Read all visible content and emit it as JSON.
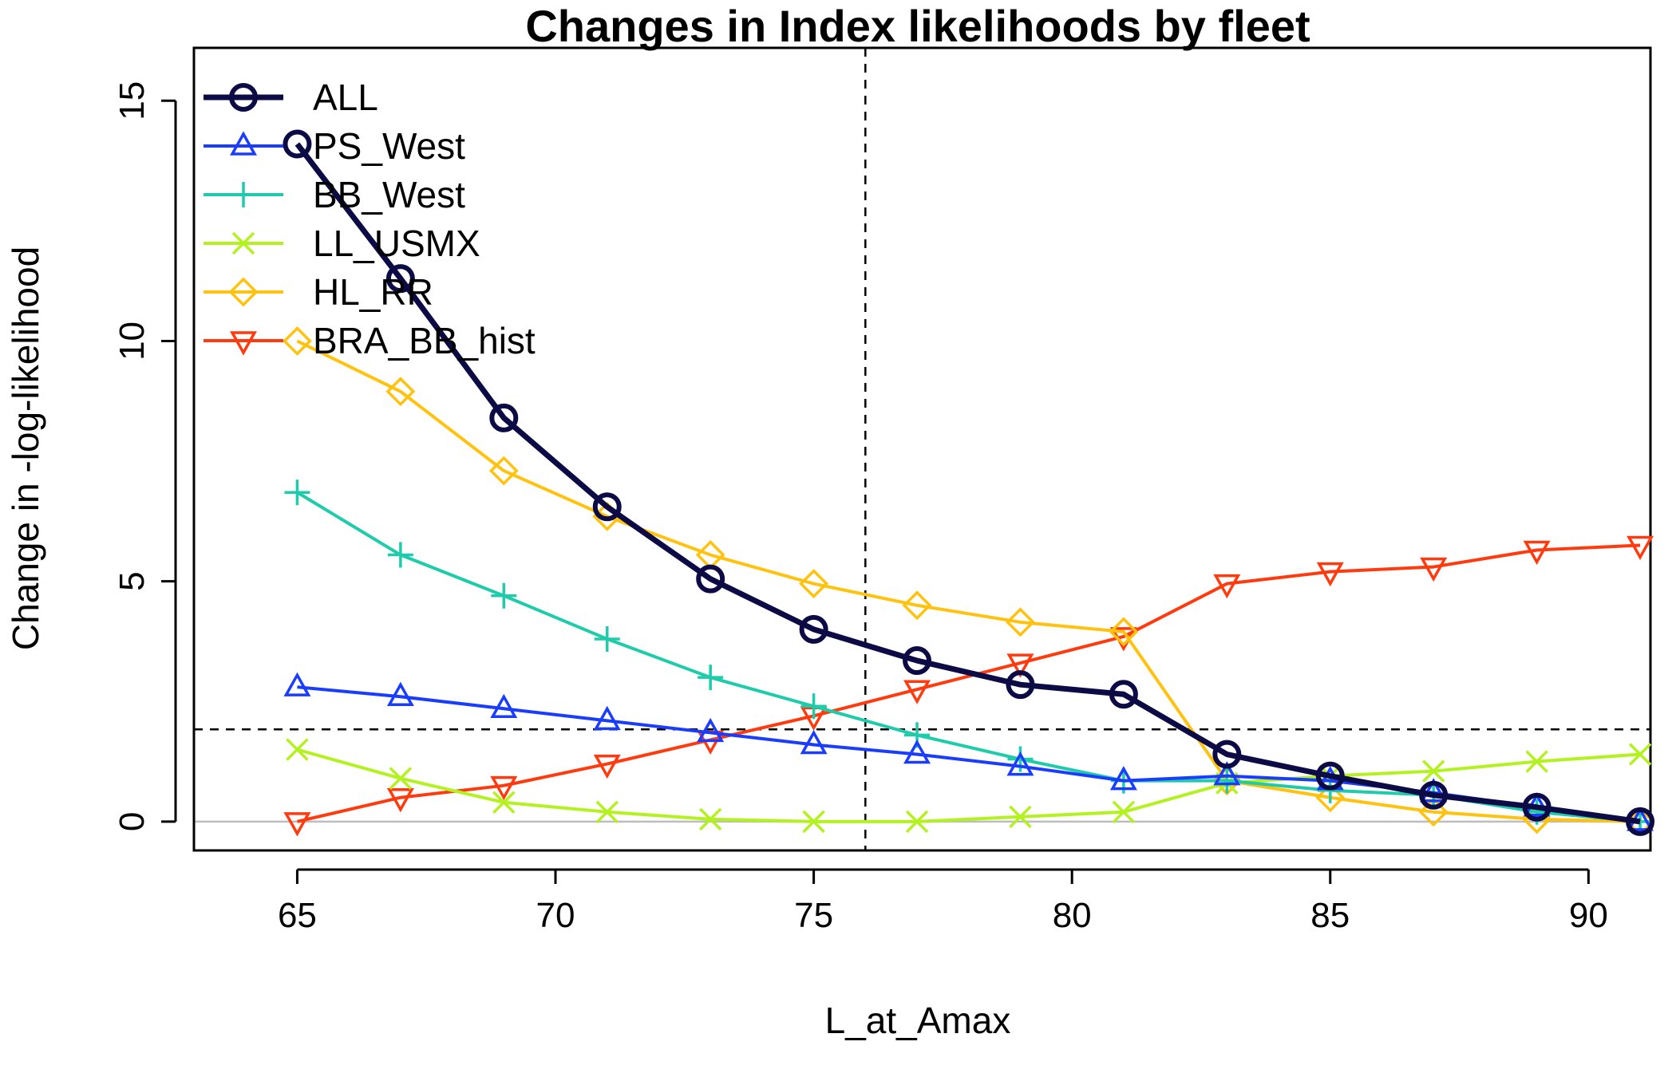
{
  "chart_data": {
    "type": "line",
    "title": "Changes in Index likelihoods by fleet",
    "xlabel": "L_at_Amax",
    "ylabel": "Change in -log-likelihood",
    "xlim": [
      63,
      91.2
    ],
    "ylim": [
      -0.6,
      16.1
    ],
    "xticks": [
      65,
      70,
      75,
      80,
      85,
      90
    ],
    "yticks": [
      0,
      5,
      10,
      15
    ],
    "x": [
      65,
      67,
      69,
      71,
      73,
      75,
      77,
      79,
      81,
      83,
      85,
      87,
      89,
      91
    ],
    "reference_lines": {
      "vertical_x": 76,
      "horizontal_y": 1.92,
      "zero_line_y": 0
    },
    "legend_position": "top-left",
    "series": [
      {
        "name": "ALL",
        "color": "#0d0b45",
        "marker": "circle",
        "lwd": "thick",
        "values": [
          14.1,
          11.3,
          8.4,
          6.55,
          5.05,
          4.0,
          3.35,
          2.85,
          2.65,
          1.4,
          0.95,
          0.55,
          0.3,
          0.0
        ]
      },
      {
        "name": "PS_West",
        "color": "#1a3cff",
        "marker": "triangle-up",
        "values": [
          2.8,
          2.6,
          2.35,
          2.1,
          1.85,
          1.6,
          1.4,
          1.15,
          0.85,
          0.95,
          0.85,
          0.6,
          0.3,
          0.0
        ]
      },
      {
        "name": "BB_West",
        "color": "#1ecbab",
        "marker": "plus",
        "values": [
          6.85,
          5.55,
          4.7,
          3.8,
          3.0,
          2.4,
          1.8,
          1.3,
          0.85,
          0.85,
          0.65,
          0.55,
          0.2,
          0.0
        ]
      },
      {
        "name": "LL_USMX",
        "color": "#b3f21f",
        "marker": "x",
        "values": [
          1.5,
          0.9,
          0.4,
          0.2,
          0.05,
          0.0,
          0.0,
          0.1,
          0.2,
          0.8,
          0.95,
          1.05,
          1.25,
          1.4
        ]
      },
      {
        "name": "HL_RR",
        "color": "#ffc20e",
        "marker": "diamond",
        "values": [
          10.0,
          8.95,
          7.3,
          6.35,
          5.55,
          4.95,
          4.5,
          4.15,
          3.95,
          0.85,
          0.5,
          0.2,
          0.05,
          0.0
        ]
      },
      {
        "name": "BRA_BB_hist",
        "color": "#ff3a0e",
        "marker": "triangle-down",
        "values": [
          0.0,
          0.5,
          0.75,
          1.2,
          1.7,
          2.2,
          2.75,
          3.3,
          3.85,
          4.95,
          5.2,
          5.3,
          5.65,
          5.75
        ]
      }
    ]
  }
}
